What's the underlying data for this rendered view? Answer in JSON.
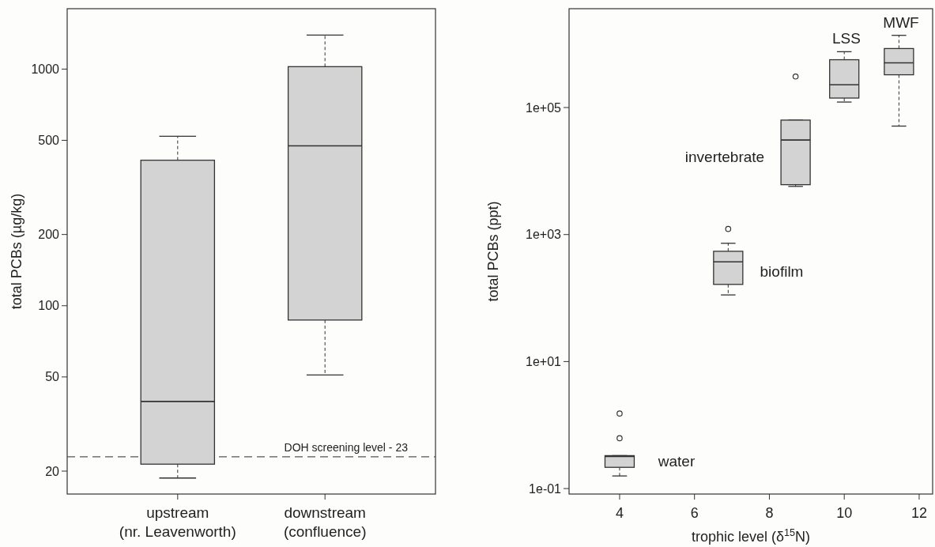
{
  "chart_data": [
    {
      "type": "box",
      "categories": [
        "upstream\n(nr. Leavenworth)",
        "downstream\n(confluence)"
      ],
      "ylabel": "total PCBs (µg/kg)",
      "log": "y",
      "ylim": [
        16,
        1800
      ],
      "yticks": [
        20,
        50,
        100,
        200,
        500,
        1000
      ],
      "color": "#d3d3d3",
      "boxes": [
        {
          "low": 18.7,
          "q1": 21.4,
          "median": 39.4,
          "q3": 412,
          "high": 520
        },
        {
          "low": 51,
          "q1": 87,
          "median": 474,
          "q3": 1024,
          "high": 1393
        }
      ],
      "ref_lines": [
        {
          "axis": "y",
          "value": 23,
          "label": "DOH screening level - 23",
          "line_style": "dashed",
          "color": "#555555"
        }
      ]
    },
    {
      "type": "box",
      "x": [
        4,
        6.9,
        8.7,
        10,
        11.46
      ],
      "xlabel": "trophic level (δ$^{15}$N)",
      "ylabel": "total PCBs (ppt)",
      "log": "y",
      "xlim": [
        2.65,
        12.36
      ],
      "xticks": [
        4,
        6,
        8,
        10,
        12
      ],
      "ylim": [
        0.082,
        3600000
      ],
      "yticks": [
        {
          "value": 0.1,
          "label": "1e-01"
        },
        {
          "value": 10,
          "label": "1e+01"
        },
        {
          "value": 1000,
          "label": "1e+03"
        },
        {
          "value": 100000,
          "label": "1e+05"
        }
      ],
      "color": "#d3d3d3",
      "boxes": [
        {
          "low": 0.158,
          "q1": 0.216,
          "median": 0.32,
          "q3": 0.33,
          "high": 0.33,
          "outliers": [
            0.62,
            1.52
          ]
        },
        {
          "low": 112,
          "q1": 164,
          "median": 372,
          "q3": 545,
          "high": 729,
          "outliers": [
            1225
          ]
        },
        {
          "low": 5730,
          "q1": 6100,
          "median": 30800,
          "q3": 63400,
          "high": 63400,
          "outliers": [
            308000
          ]
        },
        {
          "low": 122000,
          "q1": 141000,
          "median": 228000,
          "q3": 566000,
          "high": 757000
        },
        {
          "low": 51000,
          "q1": 328000,
          "median": 505000,
          "q3": 849000,
          "high": 1370000
        }
      ],
      "annotations": [
        "water",
        "biofilm",
        "invertebrate",
        "LSS",
        "MWF"
      ]
    }
  ]
}
